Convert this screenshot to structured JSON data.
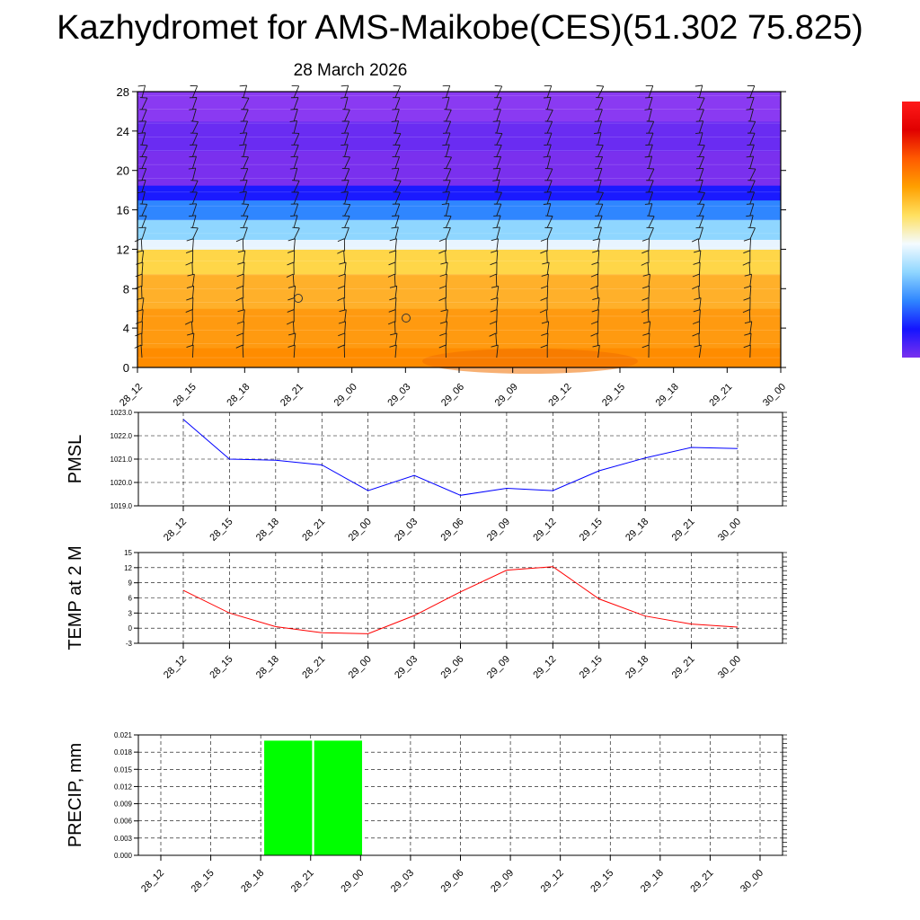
{
  "title": "Kazhydromet for AMS-Maikobe(CES)(51.302 75.825)",
  "subtitle": "28 March 2026",
  "chart_data": [
    {
      "type": "heatmap",
      "x_categories": [
        "28_12",
        "28_15",
        "28_18",
        "28_21",
        "29_00",
        "29_03",
        "29_06",
        "29_09",
        "29_12",
        "29_15",
        "29_18",
        "29_21",
        "30_00"
      ],
      "y_ticks": [
        "0",
        "4",
        "8",
        "12",
        "16",
        "20",
        "24",
        "28"
      ],
      "ylim": [
        0,
        28
      ],
      "colorbar_stops": [
        "#d80000",
        "#ff6a00",
        "#ffb300",
        "#fff07a",
        "#a8e8ff",
        "#3aa8ff",
        "#2424ff",
        "#7a2bf0"
      ],
      "field_bands": [
        {
          "from": 0,
          "to": 2,
          "color": "#ff8c00"
        },
        {
          "from": 2,
          "to": 6,
          "color": "#ff9a10"
        },
        {
          "from": 6,
          "to": 9.5,
          "color": "#ffb02a"
        },
        {
          "from": 9.5,
          "to": 12,
          "color": "#ffd648"
        },
        {
          "from": 12,
          "to": 13,
          "color": "#e8f4ff"
        },
        {
          "from": 13,
          "to": 15,
          "color": "#8fd6ff"
        },
        {
          "from": 15,
          "to": 17,
          "color": "#2f86ff"
        },
        {
          "from": 17,
          "to": 18.5,
          "color": "#1a1aff"
        },
        {
          "from": 18.5,
          "to": 22,
          "color": "#7a30ee"
        },
        {
          "from": 22,
          "to": 25,
          "color": "#6a2cf2"
        },
        {
          "from": 25,
          "to": 28,
          "color": "#8a3af2"
        }
      ]
    },
    {
      "type": "line",
      "ylabel": "PMSL",
      "x": [
        "28_12",
        "28_15",
        "28_18",
        "28_21",
        "29_00",
        "29_03",
        "29_06",
        "29_09",
        "29_12",
        "29_15",
        "29_18",
        "29_21",
        "30_00"
      ],
      "y_ticks": [
        "1019.0",
        "1020.0",
        "1021.0",
        "1022.0",
        "1023.0"
      ],
      "ylim": [
        1019,
        1023
      ],
      "series": [
        {
          "values": [
            1022.7,
            1021.0,
            1020.95,
            1020.75,
            1019.65,
            1020.3,
            1019.45,
            1019.75,
            1019.65,
            1020.5,
            1021.05,
            1021.5,
            1021.45
          ],
          "color": "#0000ff"
        }
      ]
    },
    {
      "type": "line",
      "ylabel": "TEMP at 2 M",
      "x": [
        "28_12",
        "28_15",
        "28_18",
        "28_21",
        "29_00",
        "29_03",
        "29_06",
        "29_09",
        "29_12",
        "29_15",
        "29_18",
        "29_21",
        "30_00"
      ],
      "y_ticks": [
        "-3",
        "0",
        "3",
        "6",
        "9",
        "12",
        "15"
      ],
      "ylim": [
        -3,
        15
      ],
      "series": [
        {
          "values": [
            7.5,
            3.0,
            0.3,
            -0.9,
            -1.1,
            2.5,
            7.2,
            11.5,
            12.2,
            5.8,
            2.4,
            0.8,
            0.2
          ],
          "color": "#ff0000"
        }
      ]
    },
    {
      "type": "bar",
      "ylabel": "PRECIP, mm",
      "categories": [
        "28_12",
        "28_15",
        "28_18",
        "28_21",
        "29_00",
        "29_03",
        "29_06",
        "29_09",
        "29_12",
        "29_15",
        "29_18",
        "29_21",
        "30_00"
      ],
      "values": [
        0,
        0,
        0,
        0.02,
        0.02,
        0,
        0,
        0,
        0,
        0,
        0,
        0,
        0
      ],
      "y_ticks": [
        "0.000",
        "0.003",
        "0.006",
        "0.009",
        "0.012",
        "0.015",
        "0.018",
        "0.021"
      ],
      "ylim": [
        0,
        0.021
      ],
      "color": "#00ff00"
    }
  ]
}
